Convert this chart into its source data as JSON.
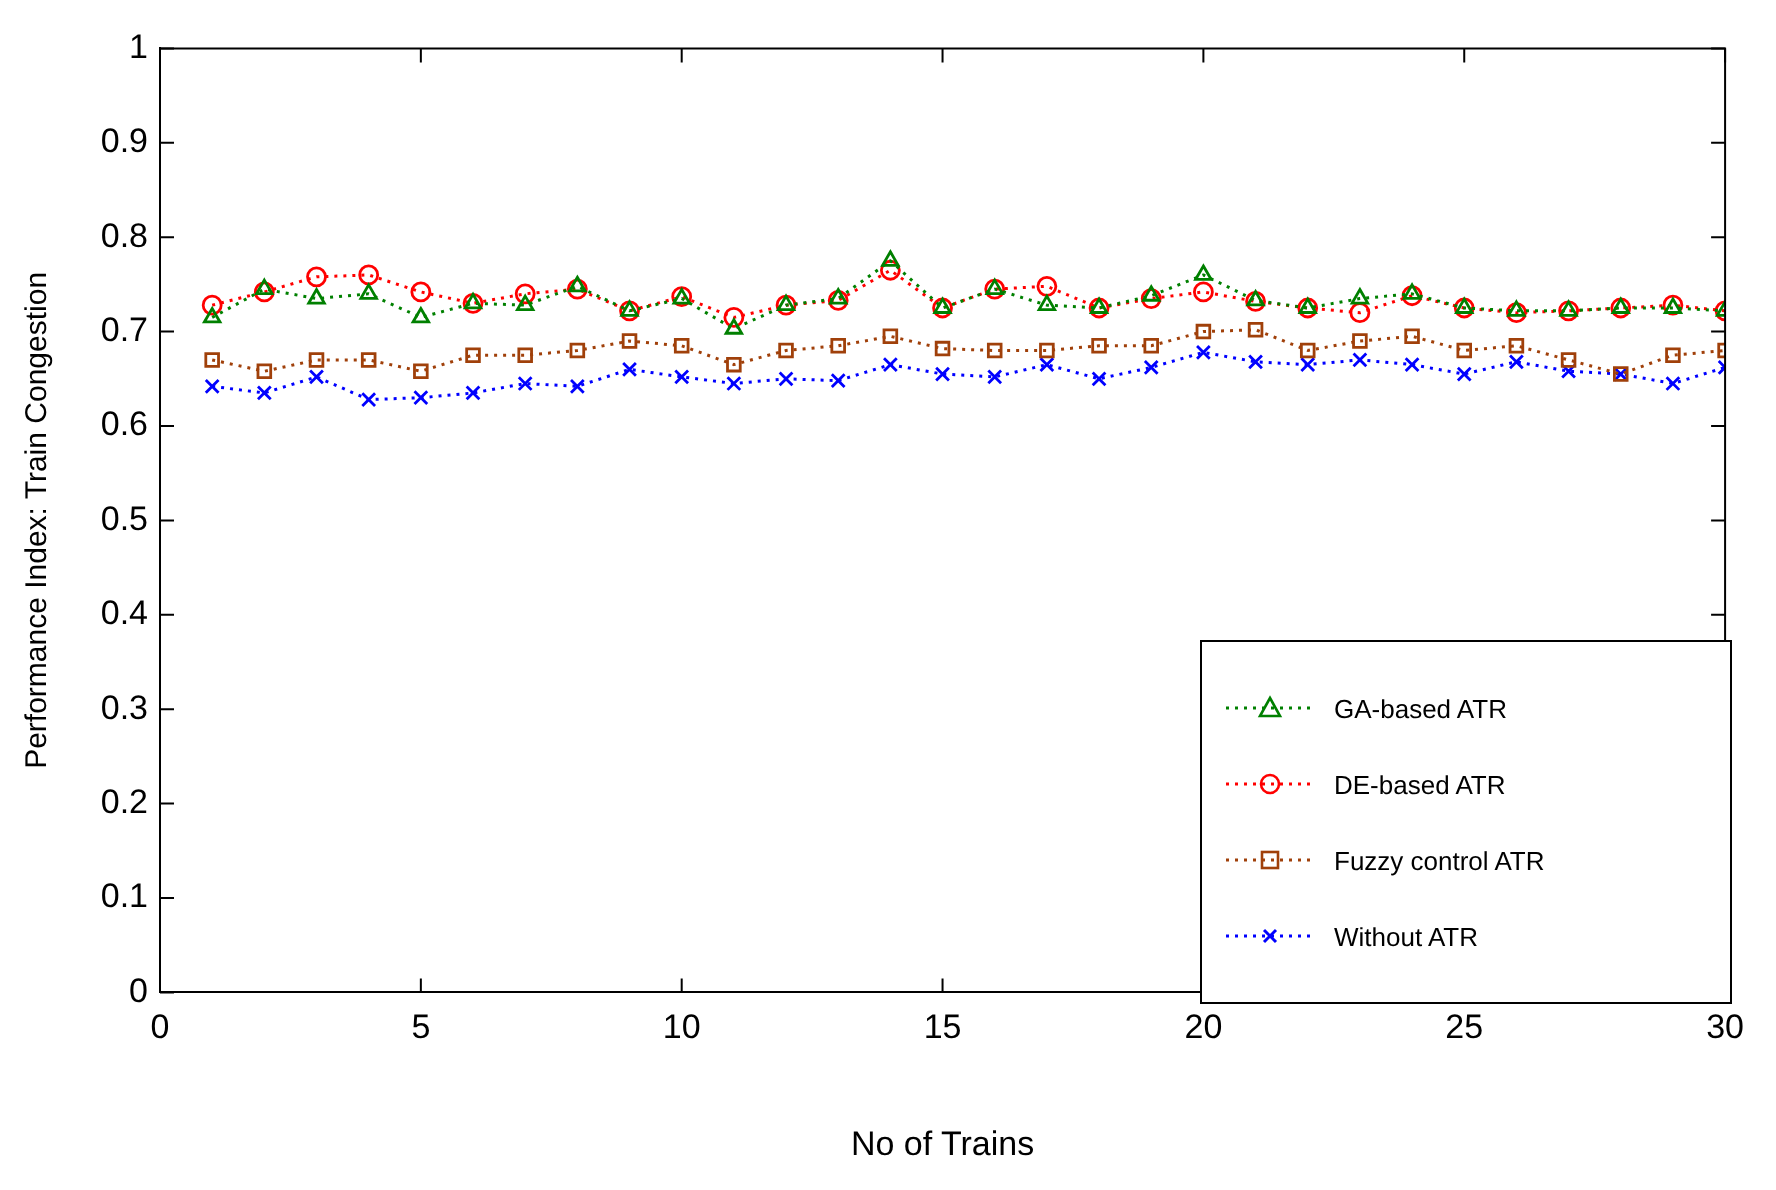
{
  "chart_data": {
    "type": "line",
    "xlabel": "No of Trains",
    "ylabel": "Performance Index: Train Congestion",
    "x": [
      1,
      2,
      3,
      4,
      5,
      6,
      7,
      8,
      9,
      10,
      11,
      12,
      13,
      14,
      15,
      16,
      17,
      18,
      19,
      20,
      21,
      22,
      23,
      24,
      25,
      26,
      27,
      28,
      29,
      30
    ],
    "xlim": [
      0,
      30
    ],
    "xticks": [
      0,
      5,
      10,
      15,
      20,
      25,
      30
    ],
    "ylim": [
      0,
      1
    ],
    "yticks": [
      0,
      0.1,
      0.2,
      0.3,
      0.4,
      0.5,
      0.6,
      0.7,
      0.8,
      0.9,
      1
    ],
    "grid": false,
    "legend": "bottom right",
    "line_style": "dotted",
    "series": [
      {
        "name": "GA-based ATR",
        "color": "#008000",
        "marker": "triangle",
        "values": [
          0.715,
          0.745,
          0.735,
          0.74,
          0.715,
          0.73,
          0.728,
          0.748,
          0.722,
          0.735,
          0.703,
          0.728,
          0.735,
          0.775,
          0.725,
          0.745,
          0.728,
          0.725,
          0.738,
          0.76,
          0.733,
          0.725,
          0.735,
          0.74,
          0.725,
          0.722,
          0.722,
          0.725,
          0.725,
          0.722
        ]
      },
      {
        "name": "DE-based ATR",
        "color": "#ff0000",
        "marker": "circle",
        "values": [
          0.728,
          0.742,
          0.758,
          0.76,
          0.742,
          0.73,
          0.74,
          0.745,
          0.722,
          0.737,
          0.715,
          0.728,
          0.733,
          0.765,
          0.725,
          0.745,
          0.748,
          0.725,
          0.735,
          0.742,
          0.732,
          0.725,
          0.72,
          0.738,
          0.725,
          0.72,
          0.722,
          0.725,
          0.728,
          0.722
        ]
      },
      {
        "name": "Fuzzy control ATR",
        "color": "#a0400a",
        "marker": "square",
        "values": [
          0.67,
          0.658,
          0.67,
          0.67,
          0.658,
          0.675,
          0.675,
          0.68,
          0.69,
          0.685,
          0.665,
          0.68,
          0.685,
          0.695,
          0.682,
          0.68,
          0.68,
          0.685,
          0.685,
          0.7,
          0.702,
          0.68,
          0.69,
          0.695,
          0.68,
          0.685,
          0.67,
          0.655,
          0.675,
          0.68
        ]
      },
      {
        "name": "Without ATR",
        "color": "#0000ff",
        "marker": "cross",
        "values": [
          0.642,
          0.635,
          0.652,
          0.628,
          0.63,
          0.635,
          0.645,
          0.642,
          0.66,
          0.652,
          0.645,
          0.65,
          0.648,
          0.665,
          0.655,
          0.652,
          0.665,
          0.65,
          0.662,
          0.678,
          0.668,
          0.665,
          0.67,
          0.665,
          0.655,
          0.668,
          0.658,
          0.655,
          0.645,
          0.662
        ]
      }
    ]
  }
}
